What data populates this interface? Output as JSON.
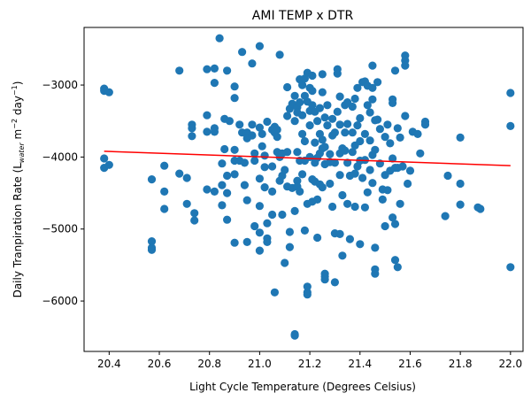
{
  "chart_data": {
    "type": "scatter",
    "title": "AMI TEMP x DTR",
    "xlabel": "Light Cycle Temperature (Degrees Celsius)",
    "ylabel": {
      "prefix": "Daily Tranpiration Rate (L",
      "subscript": "water",
      "middle": " m",
      "sup1": "−2",
      "middle2": " day",
      "sup2": "−1",
      "suffix": ")"
    },
    "xlim": [
      20.3,
      22.05
    ],
    "ylim": [
      -6700,
      -2200
    ],
    "xticks": [
      20.4,
      20.6,
      20.8,
      21.0,
      21.2,
      21.4,
      21.6,
      21.8,
      22.0
    ],
    "xtick_labels": [
      "20.4",
      "20.6",
      "20.8",
      "21.0",
      "21.2",
      "21.4",
      "21.6",
      "21.8",
      "22.0"
    ],
    "yticks": [
      -6000,
      -5000,
      -4000,
      -3000
    ],
    "ytick_labels": [
      "−6000",
      "−5000",
      "−4000",
      "−3000"
    ],
    "grid": false,
    "marker_color": "#1f77b4",
    "trend_color": "#ff0000",
    "trend_line": {
      "x": [
        20.38,
        22.0
      ],
      "y": [
        -3920,
        -4120
      ]
    },
    "series": [
      {
        "values": [
          [
            20.38,
            -3050
          ],
          [
            20.38,
            -3080
          ],
          [
            20.4,
            -3100
          ],
          [
            20.38,
            -4020
          ],
          [
            20.4,
            -4110
          ],
          [
            20.38,
            -4150
          ],
          [
            20.57,
            -4310
          ],
          [
            20.57,
            -5170
          ],
          [
            20.57,
            -5260
          ],
          [
            20.57,
            -5290
          ],
          [
            20.62,
            -4120
          ],
          [
            20.62,
            -4480
          ],
          [
            20.62,
            -4720
          ],
          [
            20.68,
            -2800
          ],
          [
            20.68,
            -4230
          ],
          [
            20.71,
            -4290
          ],
          [
            20.71,
            -4650
          ],
          [
            20.73,
            -3550
          ],
          [
            20.73,
            -3600
          ],
          [
            20.73,
            -3710
          ],
          [
            20.74,
            -4780
          ],
          [
            20.74,
            -4880
          ],
          [
            20.79,
            -2780
          ],
          [
            20.79,
            -3420
          ],
          [
            20.79,
            -3650
          ],
          [
            20.79,
            -4450
          ],
          [
            20.82,
            -2770
          ],
          [
            20.82,
            -2970
          ],
          [
            20.82,
            -3600
          ],
          [
            20.82,
            -3650
          ],
          [
            20.82,
            -4480
          ],
          [
            20.84,
            -2350
          ],
          [
            20.85,
            -4090
          ],
          [
            20.85,
            -4390
          ],
          [
            20.85,
            -4670
          ],
          [
            20.86,
            -3470
          ],
          [
            20.86,
            -3890
          ],
          [
            20.87,
            -2800
          ],
          [
            20.87,
            -4260
          ],
          [
            20.87,
            -4500
          ],
          [
            20.87,
            -4870
          ],
          [
            20.88,
            -3500
          ],
          [
            20.9,
            -3020
          ],
          [
            20.9,
            -3180
          ],
          [
            20.9,
            -3900
          ],
          [
            20.9,
            -4050
          ],
          [
            20.9,
            -4240
          ],
          [
            20.9,
            -5190
          ],
          [
            20.92,
            -3550
          ],
          [
            20.92,
            -4050
          ],
          [
            20.93,
            -2540
          ],
          [
            20.93,
            -3660
          ],
          [
            20.94,
            -4080
          ],
          [
            20.94,
            -4390
          ],
          [
            20.95,
            -3660
          ],
          [
            20.95,
            -3740
          ],
          [
            20.95,
            -4600
          ],
          [
            20.95,
            -5180
          ],
          [
            20.97,
            -2700
          ],
          [
            20.97,
            -3550
          ],
          [
            20.97,
            -3700
          ],
          [
            20.98,
            -3950
          ],
          [
            20.98,
            -4050
          ],
          [
            20.98,
            -4960
          ],
          [
            21.0,
            -2460
          ],
          [
            21.0,
            -3590
          ],
          [
            21.0,
            -4300
          ],
          [
            21.0,
            -4680
          ],
          [
            21.0,
            -5050
          ],
          [
            21.0,
            -5300
          ],
          [
            21.01,
            -3680
          ],
          [
            21.01,
            -3850
          ],
          [
            21.02,
            -3980
          ],
          [
            21.02,
            -4140
          ],
          [
            21.02,
            -4420
          ],
          [
            21.03,
            -3510
          ],
          [
            21.03,
            -4920
          ],
          [
            21.03,
            -5130
          ],
          [
            21.03,
            -5180
          ],
          [
            21.05,
            -3620
          ],
          [
            21.05,
            -4130
          ],
          [
            21.05,
            -4480
          ],
          [
            21.05,
            -4800
          ],
          [
            21.06,
            -3580
          ],
          [
            21.06,
            -3660
          ],
          [
            21.06,
            -5880
          ],
          [
            21.07,
            -3620
          ],
          [
            21.07,
            -3720
          ],
          [
            21.07,
            -3930
          ],
          [
            21.08,
            -2580
          ],
          [
            21.08,
            -4000
          ],
          [
            21.08,
            -4330
          ],
          [
            21.09,
            -3950
          ],
          [
            21.09,
            -4260
          ],
          [
            21.09,
            -4800
          ],
          [
            21.1,
            -4180
          ],
          [
            21.1,
            -5470
          ],
          [
            21.11,
            -3030
          ],
          [
            21.11,
            -3430
          ],
          [
            21.11,
            -3930
          ],
          [
            21.11,
            -4410
          ],
          [
            21.12,
            -3330
          ],
          [
            21.12,
            -5040
          ],
          [
            21.12,
            -5250
          ],
          [
            21.13,
            -3260
          ],
          [
            21.13,
            -4430
          ],
          [
            21.14,
            -3150
          ],
          [
            21.14,
            -3500
          ],
          [
            21.14,
            -4750
          ],
          [
            21.14,
            -6460
          ],
          [
            21.14,
            -6480
          ],
          [
            21.15,
            -3310
          ],
          [
            21.15,
            -3380
          ],
          [
            21.15,
            -3930
          ],
          [
            21.15,
            -4330
          ],
          [
            21.15,
            -4410
          ],
          [
            21.16,
            -2920
          ],
          [
            21.16,
            -3240
          ],
          [
            21.16,
            -4050
          ],
          [
            21.16,
            -4480
          ],
          [
            21.17,
            -3000
          ],
          [
            21.17,
            -3420
          ],
          [
            21.17,
            -3680
          ],
          [
            21.17,
            -4240
          ],
          [
            21.18,
            -2910
          ],
          [
            21.18,
            -3150
          ],
          [
            21.18,
            -3780
          ],
          [
            21.18,
            -4050
          ],
          [
            21.18,
            -5020
          ],
          [
            21.19,
            -2830
          ],
          [
            21.19,
            -3230
          ],
          [
            21.19,
            -4650
          ],
          [
            21.19,
            -5800
          ],
          [
            21.19,
            -5880
          ],
          [
            21.19,
            -5910
          ],
          [
            21.2,
            -3040
          ],
          [
            21.2,
            -3360
          ],
          [
            21.2,
            -3560
          ],
          [
            21.2,
            -4000
          ],
          [
            21.21,
            -2870
          ],
          [
            21.21,
            -3080
          ],
          [
            21.21,
            -3280
          ],
          [
            21.21,
            -4310
          ],
          [
            21.21,
            -4620
          ],
          [
            21.22,
            -3370
          ],
          [
            21.22,
            -3800
          ],
          [
            21.22,
            -4080
          ],
          [
            21.22,
            -4340
          ],
          [
            21.23,
            -3500
          ],
          [
            21.23,
            -4010
          ],
          [
            21.23,
            -4590
          ],
          [
            21.23,
            -5120
          ],
          [
            21.24,
            -3320
          ],
          [
            21.24,
            -3680
          ],
          [
            21.24,
            -3950
          ],
          [
            21.24,
            -4380
          ],
          [
            21.25,
            -2850
          ],
          [
            21.25,
            -3100
          ],
          [
            21.25,
            -3760
          ],
          [
            21.25,
            -3880
          ],
          [
            21.25,
            -4420
          ],
          [
            21.26,
            -3450
          ],
          [
            21.26,
            -3860
          ],
          [
            21.26,
            -4100
          ],
          [
            21.26,
            -5620
          ],
          [
            21.26,
            -5660
          ],
          [
            21.26,
            -5700
          ],
          [
            21.27,
            -3280
          ],
          [
            21.27,
            -3560
          ],
          [
            21.28,
            -3960
          ],
          [
            21.28,
            -4070
          ],
          [
            21.28,
            -4370
          ],
          [
            21.29,
            -3470
          ],
          [
            21.29,
            -3700
          ],
          [
            21.29,
            -4690
          ],
          [
            21.3,
            -3660
          ],
          [
            21.3,
            -4080
          ],
          [
            21.3,
            -5060
          ],
          [
            21.3,
            -5740
          ],
          [
            21.31,
            -2780
          ],
          [
            21.31,
            -2840
          ],
          [
            21.31,
            -3370
          ],
          [
            21.32,
            -3160
          ],
          [
            21.32,
            -3550
          ],
          [
            21.32,
            -3950
          ],
          [
            21.32,
            -4250
          ],
          [
            21.32,
            -5070
          ],
          [
            21.33,
            -3880
          ],
          [
            21.33,
            -4530
          ],
          [
            21.33,
            -5370
          ],
          [
            21.34,
            -3280
          ],
          [
            21.34,
            -3660
          ],
          [
            21.34,
            -3910
          ],
          [
            21.35,
            -3240
          ],
          [
            21.35,
            -3540
          ],
          [
            21.35,
            -4080
          ],
          [
            21.35,
            -4650
          ],
          [
            21.36,
            -4260
          ],
          [
            21.36,
            -5140
          ],
          [
            21.37,
            -3300
          ],
          [
            21.37,
            -3660
          ],
          [
            21.37,
            -3930
          ],
          [
            21.38,
            -3190
          ],
          [
            21.38,
            -3840
          ],
          [
            21.38,
            -4230
          ],
          [
            21.38,
            -4690
          ],
          [
            21.39,
            -3040
          ],
          [
            21.39,
            -3560
          ],
          [
            21.39,
            -4130
          ],
          [
            21.4,
            -3460
          ],
          [
            21.4,
            -3780
          ],
          [
            21.4,
            -4050
          ],
          [
            21.4,
            -5210
          ],
          [
            21.41,
            -2960
          ],
          [
            21.41,
            -4290
          ],
          [
            21.42,
            -2950
          ],
          [
            21.42,
            -3680
          ],
          [
            21.42,
            -4040
          ],
          [
            21.42,
            -4700
          ],
          [
            21.43,
            -3010
          ],
          [
            21.43,
            -3280
          ],
          [
            21.43,
            -4490
          ],
          [
            21.44,
            -3380
          ],
          [
            21.44,
            -3770
          ],
          [
            21.44,
            -4180
          ],
          [
            21.45,
            -2730
          ],
          [
            21.45,
            -3040
          ],
          [
            21.45,
            -3200
          ],
          [
            21.45,
            -3970
          ],
          [
            21.45,
            -4360
          ],
          [
            21.46,
            -3490
          ],
          [
            21.46,
            -3900
          ],
          [
            21.46,
            -5260
          ],
          [
            21.46,
            -5560
          ],
          [
            21.46,
            -5620
          ],
          [
            21.47,
            -2960
          ],
          [
            21.47,
            -3480
          ],
          [
            21.48,
            -3610
          ],
          [
            21.48,
            -4090
          ],
          [
            21.49,
            -4450
          ],
          [
            21.49,
            -4590
          ],
          [
            21.5,
            -3720
          ],
          [
            21.5,
            -4250
          ],
          [
            21.5,
            -4960
          ],
          [
            21.51,
            -3550
          ],
          [
            21.51,
            -4460
          ],
          [
            21.52,
            -3810
          ],
          [
            21.52,
            -4190
          ],
          [
            21.53,
            -3200
          ],
          [
            21.53,
            -3250
          ],
          [
            21.53,
            -4020
          ],
          [
            21.53,
            -4840
          ],
          [
            21.54,
            -2800
          ],
          [
            21.54,
            -4150
          ],
          [
            21.54,
            -4930
          ],
          [
            21.54,
            -5430
          ],
          [
            21.55,
            -3600
          ],
          [
            21.55,
            -4150
          ],
          [
            21.55,
            -5530
          ],
          [
            21.56,
            -3730
          ],
          [
            21.56,
            -4650
          ],
          [
            21.57,
            -4130
          ],
          [
            21.58,
            -3430
          ],
          [
            21.58,
            -2590
          ],
          [
            21.58,
            -2660
          ],
          [
            21.58,
            -2730
          ],
          [
            21.59,
            -4370
          ],
          [
            21.6,
            -4190
          ],
          [
            21.61,
            -3650
          ],
          [
            21.63,
            -3680
          ],
          [
            21.64,
            -3950
          ],
          [
            21.66,
            -3510
          ],
          [
            21.66,
            -3550
          ],
          [
            21.74,
            -4820
          ],
          [
            21.75,
            -4260
          ],
          [
            21.8,
            -3730
          ],
          [
            21.8,
            -4660
          ],
          [
            21.8,
            -4370
          ],
          [
            21.87,
            -4700
          ],
          [
            21.88,
            -4720
          ],
          [
            22.0,
            -3110
          ],
          [
            22.0,
            -3570
          ],
          [
            22.0,
            -5530
          ]
        ]
      }
    ]
  }
}
